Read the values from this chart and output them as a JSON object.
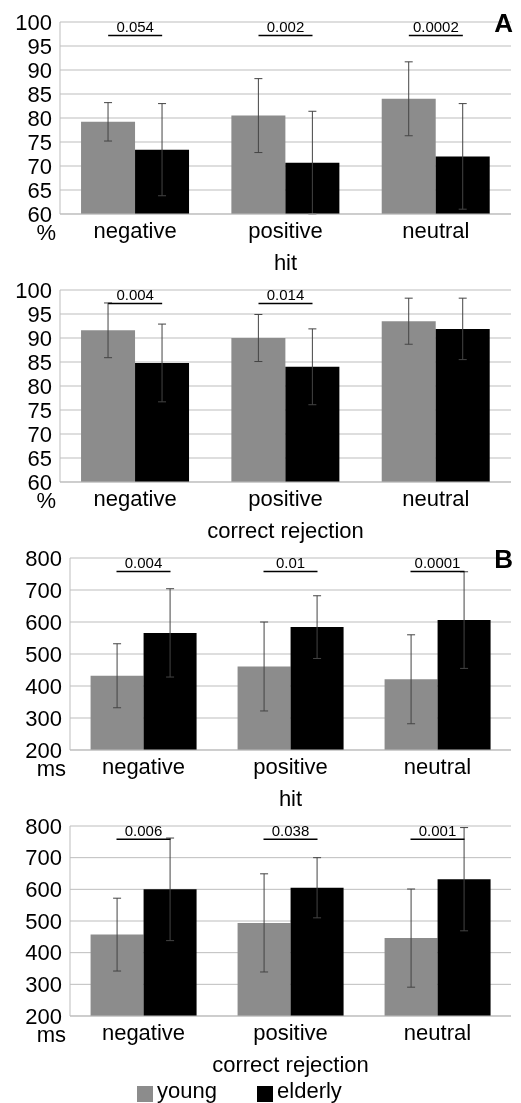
{
  "chart_data": [
    {
      "type": "bar",
      "xlabel": "hit",
      "ylabel": "%",
      "categories": [
        "negative",
        "positive",
        "neutral"
      ],
      "series": [
        {
          "color": "#8c8c8c",
          "values": [
            79.2,
            80.5,
            84
          ],
          "errors": [
            4,
            7.7,
            7.7
          ]
        },
        {
          "color": "#000000",
          "values": [
            73.4,
            70.7,
            72
          ],
          "errors": [
            9.6,
            10.7,
            11
          ]
        }
      ],
      "ylim": [
        60,
        100
      ],
      "yticks": [
        60,
        65,
        70,
        75,
        80,
        85,
        90,
        95,
        100
      ],
      "grid": "y",
      "legend": false,
      "annotations": [
        "0.054",
        "0.002",
        "0.0002",
        "A"
      ]
    },
    {
      "type": "bar",
      "xlabel": "correct rejection",
      "ylabel": "%",
      "categories": [
        "negative",
        "positive",
        "neutral"
      ],
      "series": [
        {
          "color": "#8c8c8c",
          "values": [
            91.6,
            90,
            93.5
          ],
          "errors": [
            5.7,
            4.9,
            4.8
          ]
        },
        {
          "color": "#000000",
          "values": [
            84.8,
            84,
            91.9
          ],
          "errors": [
            8.1,
            7.9,
            6.4
          ]
        }
      ],
      "ylim": [
        60,
        100
      ],
      "yticks": [
        60,
        65,
        70,
        75,
        80,
        85,
        90,
        95,
        100
      ],
      "grid": "y",
      "legend": false,
      "annotations": [
        "0.004",
        "0.014"
      ]
    },
    {
      "type": "bar",
      "xlabel": "hit",
      "ylabel": "ms",
      "categories": [
        "negative",
        "positive",
        "neutral"
      ],
      "series": [
        {
          "color": "#8c8c8c",
          "values": [
            432,
            461,
            421
          ],
          "errors": [
            100,
            139,
            139
          ]
        },
        {
          "color": "#000000",
          "values": [
            566,
            584,
            606
          ],
          "errors": [
            138,
            98,
            151
          ]
        }
      ],
      "ylim": [
        200,
        800
      ],
      "yticks": [
        200,
        300,
        400,
        500,
        600,
        700,
        800
      ],
      "grid": "y",
      "legend": false,
      "annotations": [
        "0.004",
        "0.01",
        "0.0001",
        "B"
      ]
    },
    {
      "type": "bar",
      "xlabel": "correct rejection",
      "ylabel": "ms",
      "categories": [
        "negative",
        "positive",
        "neutral"
      ],
      "series": [
        {
          "name": "young",
          "color": "#8c8c8c",
          "values": [
            457,
            494,
            446
          ],
          "errors": [
            115,
            155,
            155
          ]
        },
        {
          "name": "elderly",
          "color": "#000000",
          "values": [
            600,
            605,
            632
          ],
          "errors": [
            162,
            95,
            163
          ]
        }
      ],
      "ylim": [
        200,
        800
      ],
      "yticks": [
        200,
        300,
        400,
        500,
        600,
        700,
        800
      ],
      "grid": "y",
      "legend": "bottom",
      "annotations": [
        "0.006",
        "0.038",
        "0.001"
      ]
    }
  ]
}
